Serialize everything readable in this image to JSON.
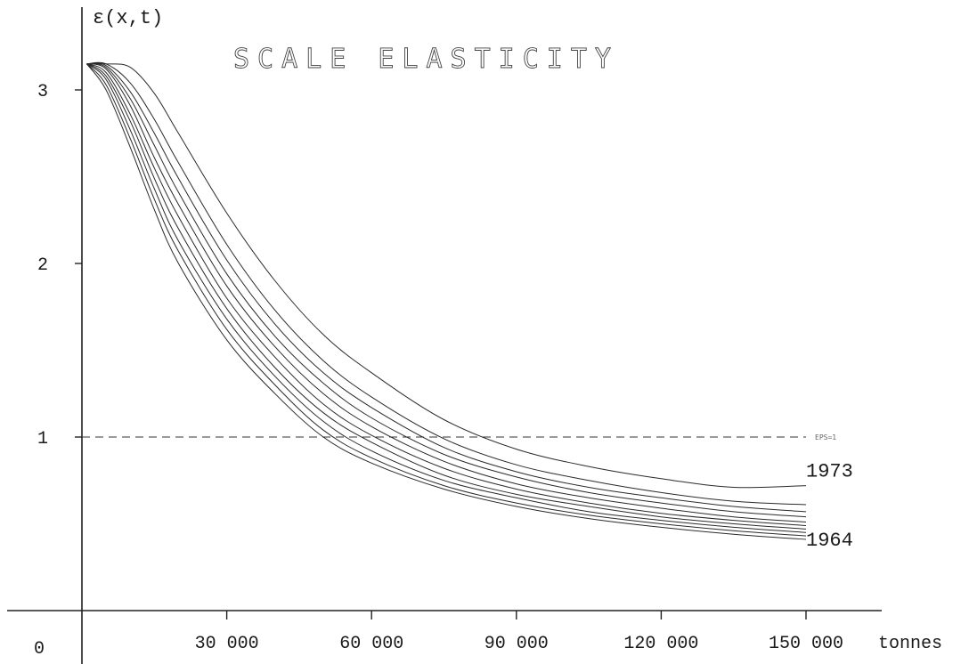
{
  "chart_data": {
    "type": "line",
    "title": "SCALE ELASTICITY",
    "ylabel": "ε(x,t)",
    "xlabel": "tonnes",
    "origin_label": "0",
    "xlim": [
      0,
      150000
    ],
    "ylim": [
      0,
      3.2
    ],
    "xticks": [
      {
        "value": 30000,
        "label": "30 000"
      },
      {
        "value": 60000,
        "label": "60 000"
      },
      {
        "value": 90000,
        "label": "90 000"
      },
      {
        "value": 120000,
        "label": "120 000"
      },
      {
        "value": 150000,
        "label": "150 000"
      }
    ],
    "yticks": [
      {
        "value": 1,
        "label": "1"
      },
      {
        "value": 2,
        "label": "2"
      },
      {
        "value": 3,
        "label": "3"
      }
    ],
    "reference_line": {
      "y": 1,
      "label": "EPS=1",
      "style": "dashed"
    },
    "x": [
      1000,
      5000,
      10000,
      15000,
      20000,
      30000,
      40000,
      50000,
      60000,
      75000,
      90000,
      105000,
      120000,
      135000,
      150000
    ],
    "series": [
      {
        "name": "1964",
        "values": [
          3.15,
          3.0,
          2.67,
          2.31,
          2.0,
          1.56,
          1.25,
          1.0,
          0.85,
          0.7,
          0.6,
          0.53,
          0.48,
          0.44,
          0.41
        ]
      },
      {
        "name": "",
        "values": [
          3.15,
          3.03,
          2.72,
          2.37,
          2.07,
          1.62,
          1.3,
          1.04,
          0.88,
          0.72,
          0.62,
          0.55,
          0.5,
          0.46,
          0.43
        ]
      },
      {
        "name": "",
        "values": [
          3.15,
          3.06,
          2.77,
          2.43,
          2.13,
          1.68,
          1.35,
          1.09,
          0.92,
          0.75,
          0.65,
          0.57,
          0.52,
          0.48,
          0.45
        ]
      },
      {
        "name": "",
        "values": [
          3.15,
          3.08,
          2.82,
          2.49,
          2.2,
          1.74,
          1.4,
          1.14,
          0.97,
          0.78,
          0.67,
          0.6,
          0.54,
          0.5,
          0.47
        ]
      },
      {
        "name": "",
        "values": [
          3.15,
          3.1,
          2.86,
          2.55,
          2.27,
          1.8,
          1.46,
          1.19,
          1.01,
          0.82,
          0.7,
          0.62,
          0.56,
          0.52,
          0.49
        ]
      },
      {
        "name": "",
        "values": [
          3.15,
          3.12,
          2.91,
          2.61,
          2.34,
          1.87,
          1.52,
          1.25,
          1.06,
          0.86,
          0.73,
          0.65,
          0.59,
          0.54,
          0.51
        ]
      },
      {
        "name": "",
        "values": [
          3.15,
          3.13,
          2.95,
          2.68,
          2.41,
          1.94,
          1.58,
          1.31,
          1.11,
          0.9,
          0.77,
          0.68,
          0.62,
          0.57,
          0.54
        ]
      },
      {
        "name": "",
        "values": [
          3.15,
          3.14,
          2.99,
          2.75,
          2.49,
          2.02,
          1.65,
          1.37,
          1.17,
          0.94,
          0.8,
          0.71,
          0.65,
          0.6,
          0.57
        ]
      },
      {
        "name": "",
        "values": [
          3.15,
          3.15,
          3.04,
          2.83,
          2.58,
          2.11,
          1.73,
          1.44,
          1.23,
          0.99,
          0.84,
          0.75,
          0.68,
          0.63,
          0.61
        ]
      },
      {
        "name": "1973",
        "values": [
          3.15,
          3.15,
          3.13,
          2.98,
          2.75,
          2.29,
          1.9,
          1.59,
          1.37,
          1.1,
          0.93,
          0.83,
          0.76,
          0.71,
          0.72
        ]
      }
    ]
  }
}
